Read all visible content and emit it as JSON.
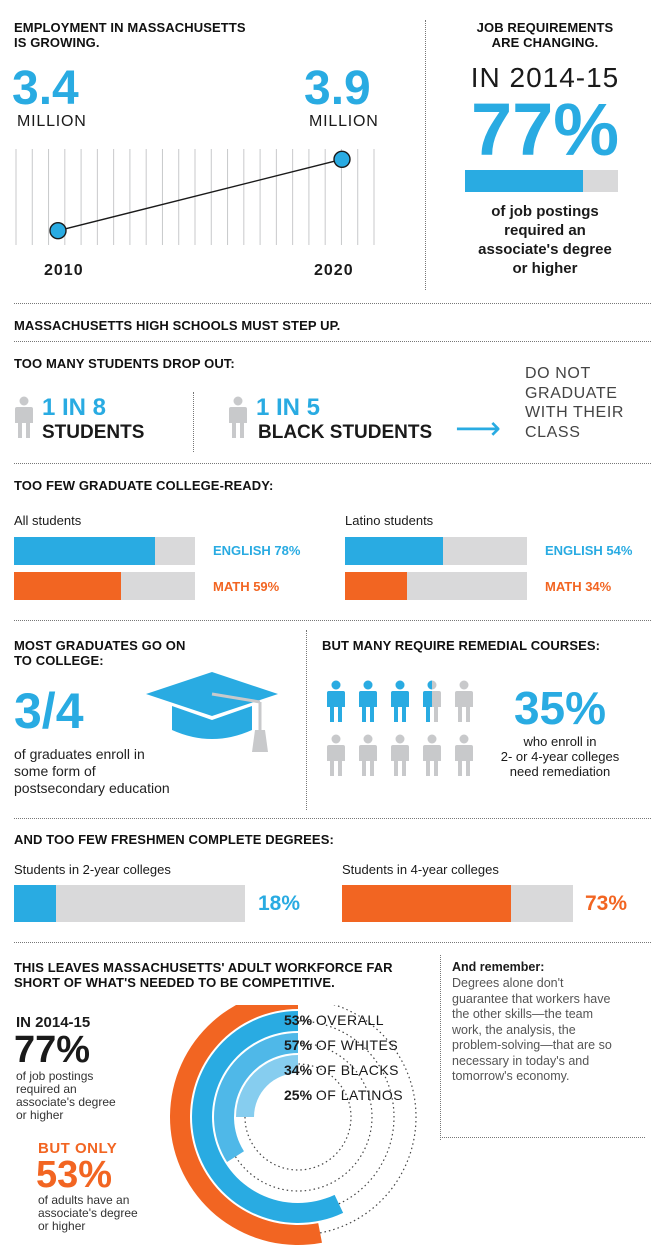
{
  "colors": {
    "blue": "#29abe2",
    "orange": "#f26522",
    "gray": "#d9d9da",
    "light_gray": "#c8c9cb",
    "light_blue": "#86cdef"
  },
  "employment": {
    "title_line1": "EMPLOYMENT IN MASSACHUSETTS",
    "title_line2": "IS GROWING.",
    "start_value": "3.4",
    "start_unit": "MILLION",
    "end_value": "3.9",
    "end_unit": "MILLION",
    "start_year": "2010",
    "end_year": "2020",
    "chart_data": {
      "type": "line",
      "x": [
        2010,
        2020
      ],
      "y": [
        3.4,
        3.9
      ]
    }
  },
  "job_req": {
    "title_line1": "JOB REQUIREMENTS",
    "title_line2": "ARE CHANGING.",
    "year_label": "IN 2014-15",
    "percent": "77%",
    "percent_value": 77,
    "desc_line1": "of job postings",
    "desc_line2": "required an",
    "desc_line3": "associate's degree",
    "desc_line4": "or higher"
  },
  "hs": {
    "title": "MASSACHUSETTS HIGH SCHOOLS MUST STEP UP.",
    "dropout_title": "TOO MANY STUDENTS DROP OUT:",
    "ratio1": "1 IN 8",
    "group1": "STUDENTS",
    "ratio2": "1 IN 5",
    "group2": "BLACK STUDENTS",
    "arrow": "⟶",
    "result_line1": "DO NOT",
    "result_line2": "GRADUATE",
    "result_line3": "WITH THEIR",
    "result_line4": "CLASS"
  },
  "college_ready": {
    "title": "TOO FEW GRADUATE COLLEGE-READY:",
    "groups": [
      {
        "label": "All students",
        "english_label": "ENGLISH 78%",
        "english": 78,
        "math_label": "MATH 59%",
        "math": 59
      },
      {
        "label": "Latino students",
        "english_label": "ENGLISH 54%",
        "english": 54,
        "math_label": "MATH 34%",
        "math": 34
      }
    ]
  },
  "college_going": {
    "title_line1": "MOST GRADUATES GO ON",
    "title_line2": "TO COLLEGE:",
    "fraction": "3/4",
    "desc_line1": "of graduates enroll in",
    "desc_line2": "some form of",
    "desc_line3": "postsecondary education",
    "icon": "graduation-cap-icon"
  },
  "remedial": {
    "title": "BUT MANY REQUIRE REMEDIAL COURSES:",
    "percent": "35%",
    "percent_value": 35,
    "desc_line1": "who enroll in",
    "desc_line2": "2- or 4-year colleges",
    "desc_line3": "need remediation",
    "icon": "person-icon"
  },
  "completion": {
    "title": "AND TOO FEW FRESHMEN COMPLETE DEGREES:",
    "items": [
      {
        "label": "Students in 2-year colleges",
        "percent_label": "18%",
        "percent": 18
      },
      {
        "label": "Students in 4-year colleges",
        "percent_label": "73%",
        "percent": 73
      }
    ]
  },
  "workforce": {
    "title_line1": "THIS LEAVES MASSACHUSETTS' ADULT WORKFORCE FAR",
    "title_line2": "SHORT OF WHAT'S NEEDED TO BE COMPETITIVE.",
    "year_label": "IN 2014-15",
    "percent": "77%",
    "desc_line1": "of job postings",
    "desc_line2": "required an",
    "desc_line3": "associate's degree",
    "desc_line4": "or higher",
    "but_only": "BUT ONLY",
    "adults_percent": "53%",
    "adults_line1": "of adults have an",
    "adults_line2": "associate's degree",
    "adults_line3": "or higher",
    "chart_data": {
      "type": "radial_bar",
      "series": [
        {
          "name": "OVERALL",
          "value": 53,
          "label_pct": "53%",
          "label_name": "OVERALL"
        },
        {
          "name": "OF WHITES",
          "value": 57,
          "label_pct": "57%",
          "label_name": "OF WHITES"
        },
        {
          "name": "OF BLACKS",
          "value": 34,
          "label_pct": "34%",
          "label_name": "OF BLACKS"
        },
        {
          "name": "OF LATINOS",
          "value": 25,
          "label_pct": "25%",
          "label_name": "OF LATINOS"
        }
      ]
    }
  },
  "remember": {
    "title": "And remember:",
    "line1": "Degrees alone don't",
    "line2": "guarantee that workers have",
    "line3": "the other skills—the team",
    "line4": "work, the analysis, the",
    "line5": "problem-solving—that are so",
    "line6": "necessary in today's and",
    "line7": "tomorrow's economy."
  }
}
